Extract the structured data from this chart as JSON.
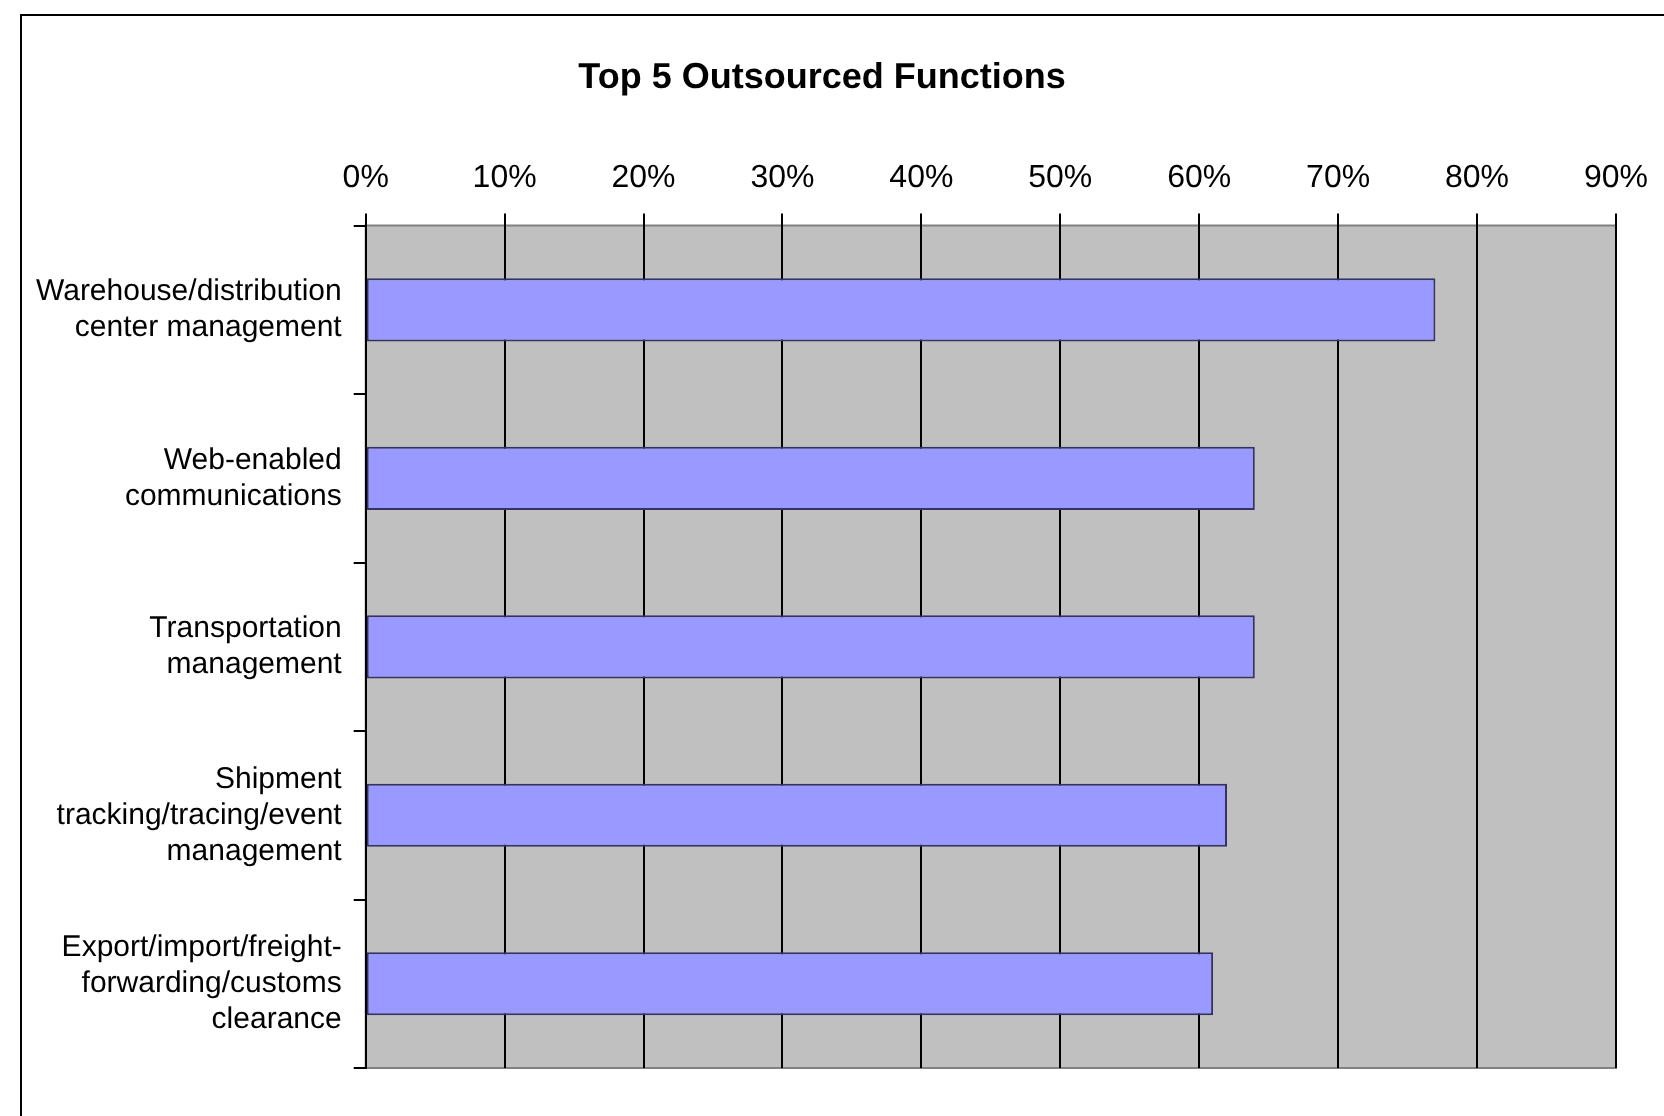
{
  "chart_data": {
    "type": "bar",
    "orientation": "horizontal",
    "title": "Top 5 Outsourced Functions",
    "categories": [
      "Warehouse/distribution center management",
      "Web-enabled communications",
      "Transportation management",
      "Shipment tracking/tracing/event management",
      "Export/import/freight-forwarding/customs clearance"
    ],
    "values": [
      77,
      64,
      64,
      62,
      61
    ],
    "color": "#9999ff",
    "xlim": [
      0,
      90
    ],
    "xticks": [
      {
        "value": 0,
        "label": "0%"
      },
      {
        "value": 10,
        "label": "10%"
      },
      {
        "value": 20,
        "label": "20%"
      },
      {
        "value": 30,
        "label": "30%"
      },
      {
        "value": 40,
        "label": "40%"
      },
      {
        "value": 50,
        "label": "50%"
      },
      {
        "value": 60,
        "label": "60%"
      },
      {
        "value": 70,
        "label": "70%"
      },
      {
        "value": 80,
        "label": "80%"
      },
      {
        "value": 90,
        "label": "90%"
      }
    ],
    "grid": "x",
    "legend": false
  }
}
